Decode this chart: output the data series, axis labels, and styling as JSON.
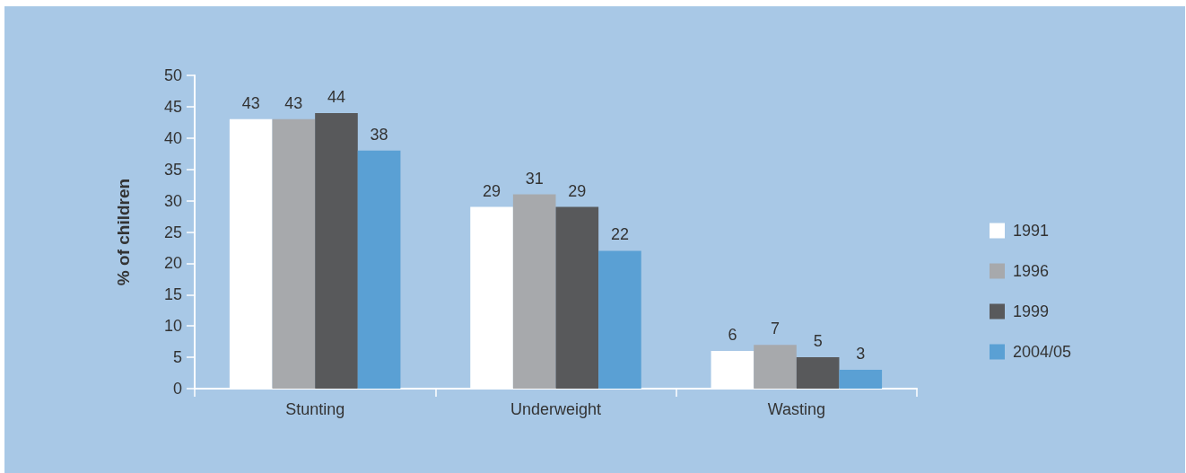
{
  "chart_data": {
    "type": "bar",
    "categories": [
      "Stunting",
      "Underweight",
      "Wasting"
    ],
    "series": [
      {
        "name": "1991",
        "color": "#ffffff",
        "values": [
          43,
          29,
          6
        ]
      },
      {
        "name": "1996",
        "color": "#a7a9ac",
        "values": [
          43,
          31,
          7
        ]
      },
      {
        "name": "1999",
        "color": "#58595b",
        "values": [
          44,
          29,
          5
        ]
      },
      {
        "name": "2004/05",
        "color": "#5aa0d4",
        "values": [
          38,
          22,
          3
        ]
      }
    ],
    "ylabel": "% of children",
    "ylim": [
      0,
      50
    ],
    "yticks": [
      0,
      5,
      10,
      15,
      20,
      25,
      30,
      35,
      40,
      45,
      50
    ],
    "data_labels": true,
    "legend": "right"
  }
}
